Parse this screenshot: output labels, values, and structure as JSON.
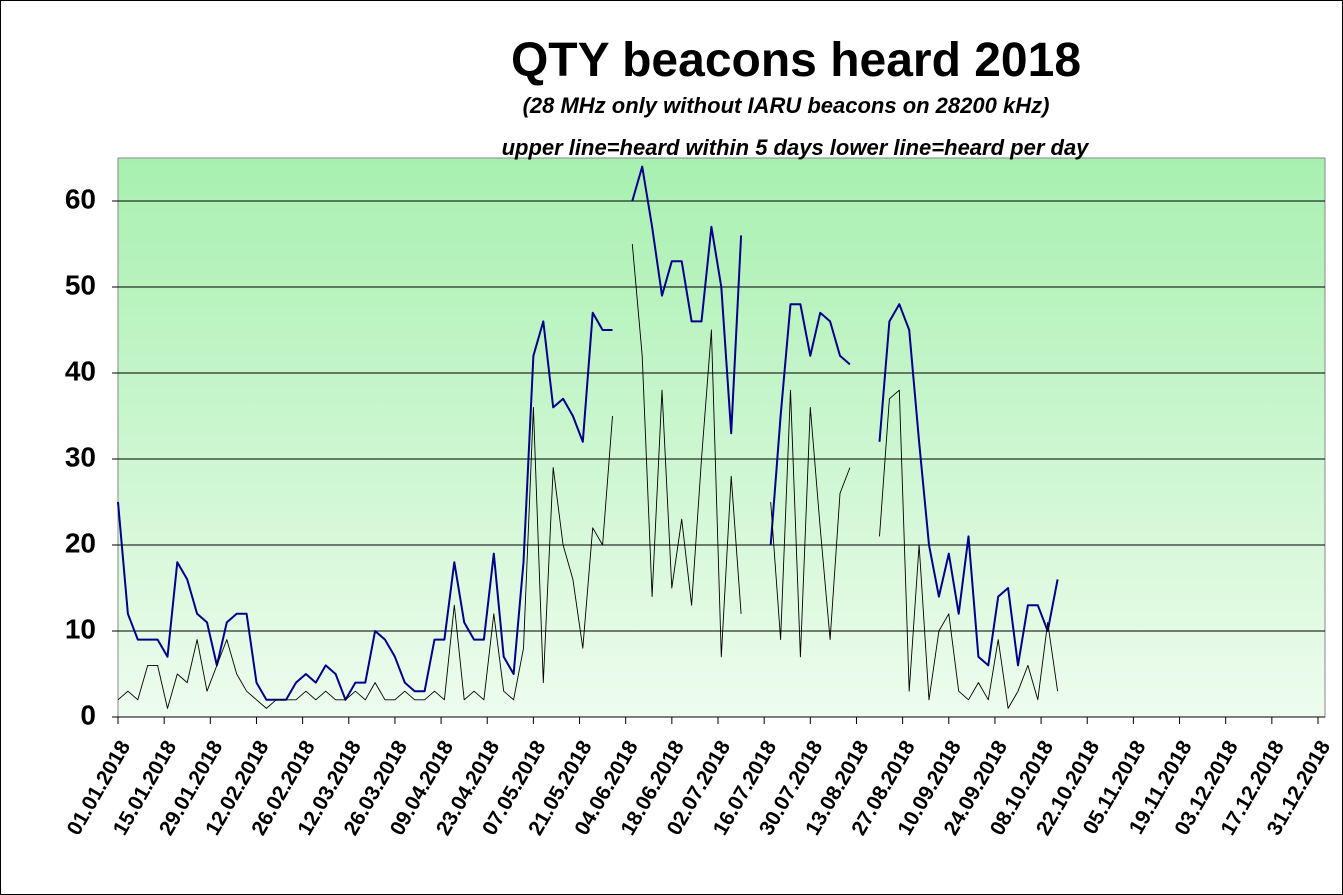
{
  "chart_data": {
    "type": "line",
    "title": "QTY beacons heard 2018",
    "subtitle": "(28 MHz only without IARU beacons on 28200 kHz)",
    "subtitle2": "upper line=heard within 5 days  lower line=heard per day",
    "x": [
      0,
      3,
      6,
      9,
      12,
      15,
      18,
      21,
      24,
      27,
      30,
      33,
      36,
      39,
      42,
      45,
      48,
      51,
      54,
      57,
      60,
      63,
      66,
      69,
      72,
      75,
      78,
      81,
      84,
      87,
      90,
      93,
      96,
      99,
      102,
      105,
      108,
      111,
      114,
      117,
      120,
      123,
      126,
      129,
      132,
      135,
      138,
      141,
      144,
      147,
      150,
      153,
      156,
      159,
      162,
      165,
      168,
      171,
      174,
      177,
      180,
      183,
      186,
      189,
      192,
      195,
      198,
      201,
      204,
      207,
      210,
      213,
      216,
      219,
      222,
      225,
      228,
      231,
      234,
      237,
      240,
      243,
      246,
      249,
      252,
      255,
      258,
      261,
      264,
      267,
      270,
      273,
      276,
      279,
      282,
      285
    ],
    "series": [
      {
        "name": "upper line",
        "color": "#00008b",
        "values": [
          25,
          12,
          9,
          9,
          9,
          7,
          18,
          16,
          12,
          11,
          6,
          11,
          12,
          12,
          4,
          2,
          2,
          2,
          4,
          5,
          4,
          6,
          5,
          2,
          4,
          4,
          10,
          9,
          7,
          4,
          3,
          3,
          9,
          9,
          18,
          11,
          9,
          9,
          19,
          7,
          5,
          18,
          42,
          46,
          36,
          37,
          35,
          32,
          47,
          45,
          45,
          null,
          60,
          64,
          57,
          49,
          53,
          53,
          46,
          46,
          57,
          50,
          33,
          56,
          null,
          null,
          20,
          35,
          48,
          48,
          42,
          47,
          46,
          42,
          41,
          null,
          null,
          32,
          46,
          48,
          45,
          32,
          20,
          14,
          19,
          12,
          21,
          7,
          6,
          14,
          15,
          6,
          13,
          13,
          10,
          16
        ]
      },
      {
        "name": "lower line",
        "color": "#000000",
        "values": [
          2,
          3,
          2,
          6,
          6,
          1,
          5,
          4,
          9,
          3,
          6,
          9,
          5,
          3,
          2,
          1,
          2,
          2,
          2,
          3,
          2,
          3,
          2,
          2,
          3,
          2,
          4,
          2,
          2,
          3,
          2,
          2,
          3,
          2,
          13,
          2,
          3,
          2,
          12,
          3,
          2,
          8,
          36,
          4,
          29,
          20,
          16,
          8,
          22,
          20,
          35,
          null,
          55,
          42,
          14,
          38,
          15,
          23,
          13,
          30,
          45,
          7,
          28,
          12,
          null,
          null,
          25,
          9,
          38,
          7,
          36,
          22,
          9,
          26,
          29,
          null,
          null,
          21,
          37,
          38,
          3,
          20,
          2,
          10,
          12,
          3,
          2,
          4,
          2,
          9,
          1,
          3,
          6,
          2,
          11,
          3
        ]
      }
    ],
    "xlim": [
      0,
      364
    ],
    "xticks": [
      {
        "value": 0,
        "label": "01.01.2018"
      },
      {
        "value": 14,
        "label": "15.01.2018"
      },
      {
        "value": 28,
        "label": "29.01.2018"
      },
      {
        "value": 42,
        "label": "12.02.2018"
      },
      {
        "value": 56,
        "label": "26.02.2018"
      },
      {
        "value": 70,
        "label": "12.03.2018"
      },
      {
        "value": 84,
        "label": "26.03.2018"
      },
      {
        "value": 98,
        "label": "09.04.2018"
      },
      {
        "value": 112,
        "label": "23.04.2018"
      },
      {
        "value": 126,
        "label": "07.05.2018"
      },
      {
        "value": 140,
        "label": "21.05.2018"
      },
      {
        "value": 154,
        "label": "04.06.2018"
      },
      {
        "value": 168,
        "label": "18.06.2018"
      },
      {
        "value": 182,
        "label": "02.07.2018"
      },
      {
        "value": 196,
        "label": "16.07.2018"
      },
      {
        "value": 210,
        "label": "30.07.2018"
      },
      {
        "value": 224,
        "label": "13.08.2018"
      },
      {
        "value": 238,
        "label": "27.08.2018"
      },
      {
        "value": 252,
        "label": "10.09.2018"
      },
      {
        "value": 266,
        "label": "24.09.2018"
      },
      {
        "value": 280,
        "label": "08.10.2018"
      },
      {
        "value": 294,
        "label": "22.10.2018"
      },
      {
        "value": 308,
        "label": "05.11.2018"
      },
      {
        "value": 322,
        "label": "19.11.2018"
      },
      {
        "value": 336,
        "label": "03.12.2018"
      },
      {
        "value": 350,
        "label": "17.12.2018"
      },
      {
        "value": 364,
        "label": "31.12.2018"
      }
    ],
    "ylim": [
      0,
      65
    ],
    "yticks": [
      0,
      10,
      20,
      30,
      40,
      50,
      60
    ],
    "grid": true
  }
}
